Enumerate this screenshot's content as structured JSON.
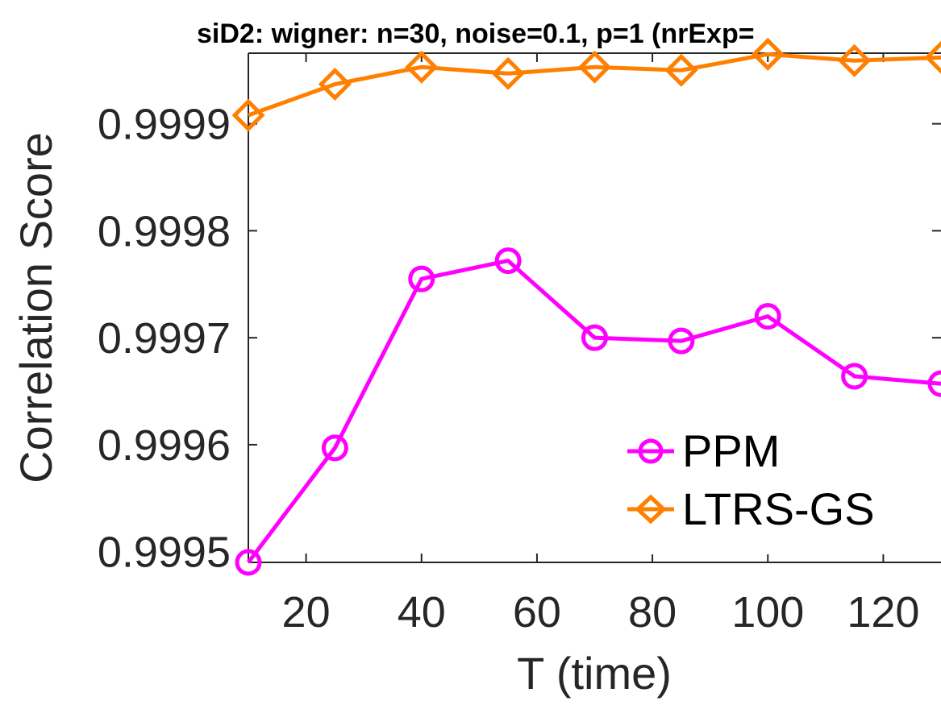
{
  "chart_data": {
    "type": "line",
    "title": "siD2: wigner: n=30, noise=0.1, p=1 (nrExp=",
    "xlabel": "T (time)",
    "ylabel": "Correlation Score",
    "xlim": [
      10,
      130
    ],
    "ylim": [
      0.99949,
      0.999966
    ],
    "xticks": [
      20,
      40,
      60,
      80,
      100,
      120
    ],
    "xtick_labels": [
      "20",
      "40",
      "60",
      "80",
      "100",
      "120"
    ],
    "yticks": [
      0.9995,
      0.9996,
      0.9997,
      0.9998,
      0.9999
    ],
    "ytick_labels": [
      "0.9995",
      "0.9996",
      "0.9997",
      "0.9998",
      "0.9999"
    ],
    "x": [
      10,
      25,
      40,
      55,
      70,
      85,
      100,
      115,
      130
    ],
    "grid": false,
    "legend_position": "bottom-right",
    "series": [
      {
        "name": "PPM",
        "color": "#ff00ff",
        "marker": "circle",
        "values": [
          0.99949,
          0.999597,
          0.999755,
          0.999772,
          0.9997,
          0.999697,
          0.99972,
          0.999664,
          0.999657
        ]
      },
      {
        "name": "LTRS-GS",
        "color": "#ff8000",
        "marker": "diamond",
        "values": [
          0.999908,
          0.999937,
          0.999953,
          0.999947,
          0.999953,
          0.99995,
          0.999965,
          0.999959,
          0.999962
        ]
      }
    ]
  }
}
